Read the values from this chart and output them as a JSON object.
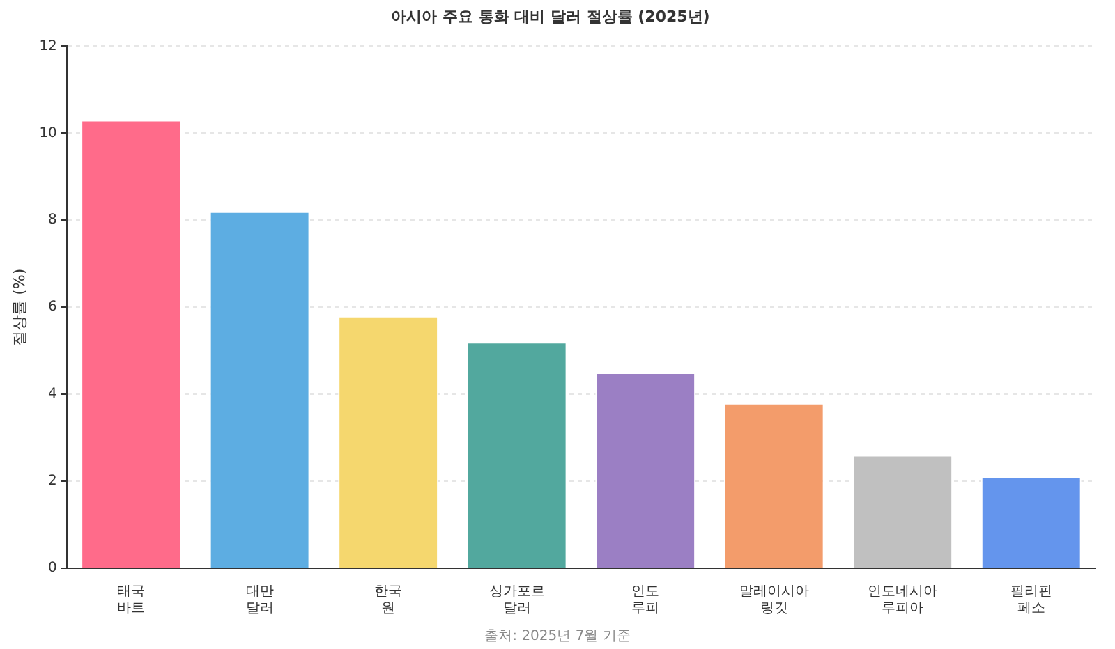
{
  "chart_data": {
    "type": "bar",
    "title": "아시아 주요 통화 대비 달러 절상률 (2025년)",
    "ylabel": "절상률 (%)",
    "categories": [
      "태국\n바트",
      "대만\n달러",
      "한국\n원",
      "싱가포르\n달러",
      "인도\n루피",
      "말레이시아\n링깃",
      "인도네시아\n루피아",
      "필리핀\n페소"
    ],
    "values": [
      10.3,
      8.2,
      5.8,
      5.2,
      4.5,
      3.8,
      2.6,
      2.1
    ],
    "colors": [
      "#ff6b8a",
      "#5dade2",
      "#f5d76e",
      "#52a89e",
      "#9b7fc4",
      "#f39c6b",
      "#c0c0c0",
      "#6495ed"
    ],
    "ylim": [
      0,
      12
    ],
    "yticks": [
      0,
      2,
      4,
      6,
      8,
      10,
      12
    ],
    "grid": "y",
    "legend": false,
    "annotations": [
      "출처: 2025년 7월 기준"
    ]
  }
}
